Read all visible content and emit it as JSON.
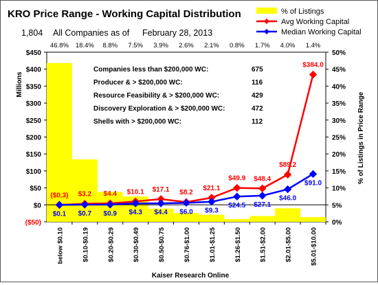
{
  "chart_data": {
    "type": "bar",
    "title": "KRO Price Range - Working Capital Distribution",
    "subtitle": {
      "count": "1,804",
      "text": "All Companies as of",
      "date": "February 28, 2013"
    },
    "xlabel": "Kaiser Research Online",
    "ylabel_left": "Millions",
    "ylabel_right": "% of Listings in Price Range",
    "ylim_left": [
      -50,
      450
    ],
    "ylim_right": [
      0,
      50
    ],
    "yticks_left": [
      "($50)",
      "$0",
      "$50",
      "$100",
      "$150",
      "$200",
      "$250",
      "$300",
      "$350",
      "$400",
      "$450"
    ],
    "yticks_right": [
      "0%",
      "5%",
      "10%",
      "15%",
      "20%",
      "25%",
      "30%",
      "35%",
      "40%",
      "45%",
      "50%"
    ],
    "categories": [
      "below $0.10",
      "$0.10-$0.19",
      "$0.20-$0.29",
      "$0.30-$0.49",
      "$0.50-$0.75",
      "$0.76-$1.00",
      "$1.01-$1.25",
      "$1.26-$1.50",
      "$1.51-$2.00",
      "$2.01-$5.00",
      "$5.01-$10.00"
    ],
    "series": [
      {
        "name": "% of Listings",
        "kind": "bar",
        "axis": "right",
        "color": "#ffff00",
        "values": [
          46.8,
          18.4,
          8.8,
          7.5,
          3.9,
          2.6,
          2.1,
          0.8,
          1.7,
          4.0,
          1.4
        ],
        "labels": [
          "46.8%",
          "18.4%",
          "8.8%",
          "7.5%",
          "3.9%",
          "2.6%",
          "2.1%",
          "0.8%",
          "1.7%",
          "4.0%",
          "1.4%"
        ]
      },
      {
        "name": "Avg Working Capital",
        "kind": "line",
        "axis": "left",
        "color": "#ff0000",
        "values": [
          -0.3,
          3.2,
          4.4,
          10.1,
          17.1,
          8.2,
          21.1,
          49.9,
          48.4,
          89.2,
          384.0
        ],
        "labels": [
          "($0.3)",
          "$3.2",
          "$4.4",
          "$10.1",
          "$17.1",
          "$8.2",
          "$21.1",
          "$49.9",
          "$48.4",
          "$89.2",
          "$384.0"
        ]
      },
      {
        "name": "Median Working Capital",
        "kind": "line",
        "axis": "left",
        "color": "#0000ff",
        "values": [
          0.1,
          0.7,
          0.9,
          4.3,
          4.4,
          6.0,
          9.3,
          24.5,
          27.1,
          46.0,
          91.0
        ],
        "labels": [
          "$0.1",
          "$0.7",
          "$0.9",
          "$4.3",
          "$4.4",
          "$6.0",
          "$9.3",
          "$24.5",
          "$27.1",
          "$46.0",
          "$91.0"
        ]
      }
    ],
    "legend_position": "top-right",
    "annotation_table": [
      {
        "label": "Companies less than $200,000 WC:",
        "value": "675"
      },
      {
        "label": "Producer & > $200,000 WC:",
        "value": "116"
      },
      {
        "label": "Resource Feasibility & > $200,000 WC:",
        "value": "429"
      },
      {
        "label": "Discovery Exploration & > $200,000 WC:",
        "value": "472"
      },
      {
        "label": "Shells with > $200,000 WC:",
        "value": "112"
      }
    ]
  }
}
